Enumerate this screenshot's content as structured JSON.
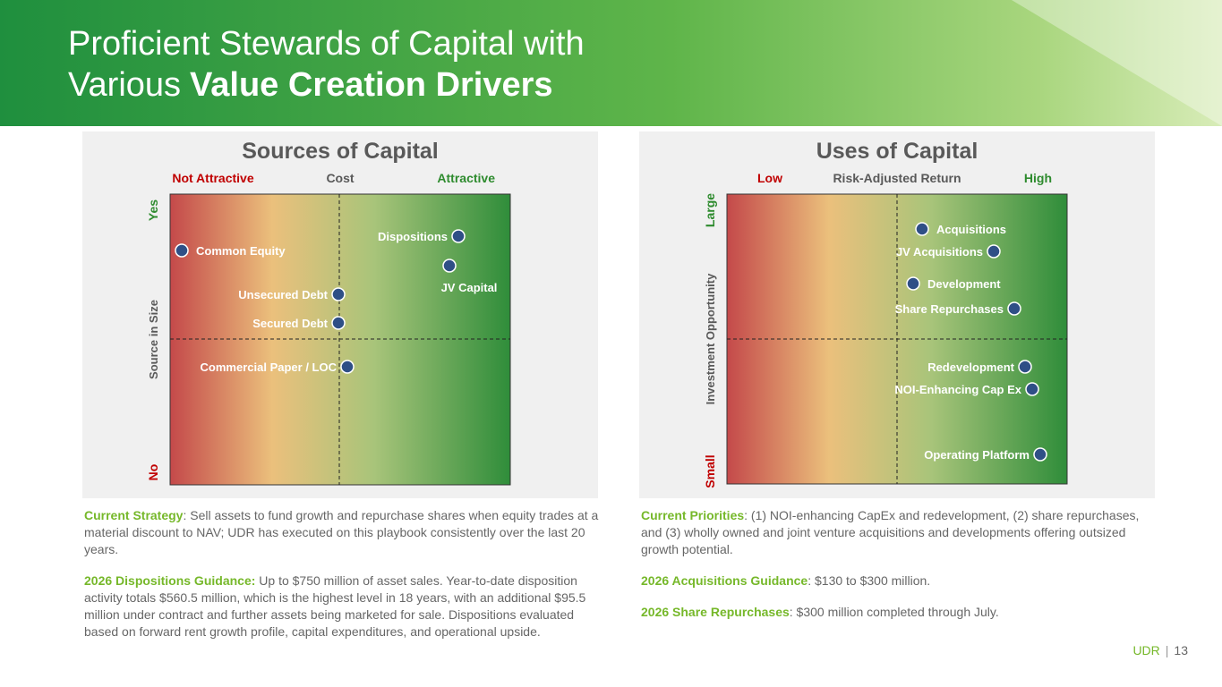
{
  "header": {
    "title": [
      "Proficient Stewards of Capital with",
      "Various",
      "Value Creation Drivers"
    ]
  },
  "panels": [
    {
      "title": "Sources of Capital",
      "x_axis": {
        "left": "Not Attractive",
        "center": "Cost",
        "right": "Attractive"
      },
      "y_axis": {
        "top": "Yes",
        "center": "Source in Size",
        "bottom": "No"
      },
      "items": [
        "Common Equity",
        "Dispositions",
        "JV Capital",
        "Unsecured Debt",
        "Secured Debt",
        "Commercial Paper / LOC"
      ],
      "notes": [
        {
          "label": "Current Strategy",
          "text": ": Sell assets to fund growth and repurchase shares when equity trades at a material discount to NAV; UDR has executed on this playbook consistently over the last 20 years."
        },
        {
          "label": "2026 Dispositions Guidance:",
          "text": " Up to $750 million of asset sales. Year-to-date disposition activity totals $560.5 million, which is the highest level in 18 years, with an additional $95.5 million under contract and further assets being marketed for sale. Dispositions evaluated based on forward rent growth profile, capital expenditures, and operational upside."
        }
      ]
    },
    {
      "title": "Uses of Capital",
      "x_axis": {
        "left": "Low",
        "center": "Risk-Adjusted Return",
        "right": "High"
      },
      "y_axis": {
        "top": "Large",
        "center": "Investment Opportunity",
        "bottom": "Small"
      },
      "items": [
        "Acquisitions",
        "JV Acquisitions",
        "Development",
        "Share Repurchases",
        "Redevelopment",
        "NOI-Enhancing Cap Ex",
        "Operating Platform"
      ],
      "notes": [
        {
          "label": "Current Priorities",
          "text": ": (1) NOI-enhancing CapEx and redevelopment, (2) share repurchases, and (3) wholly owned and joint venture acquisitions and developments offering outsized growth potential."
        },
        {
          "label": "2026 Acquisitions Guidance",
          "text": ": $130 to $300 million."
        },
        {
          "label": "2026 Share Repurchases",
          "text": ": $300 million completed through July."
        }
      ]
    }
  ],
  "footer": {
    "brand": "UDR",
    "separator": "|",
    "page": "13"
  }
}
